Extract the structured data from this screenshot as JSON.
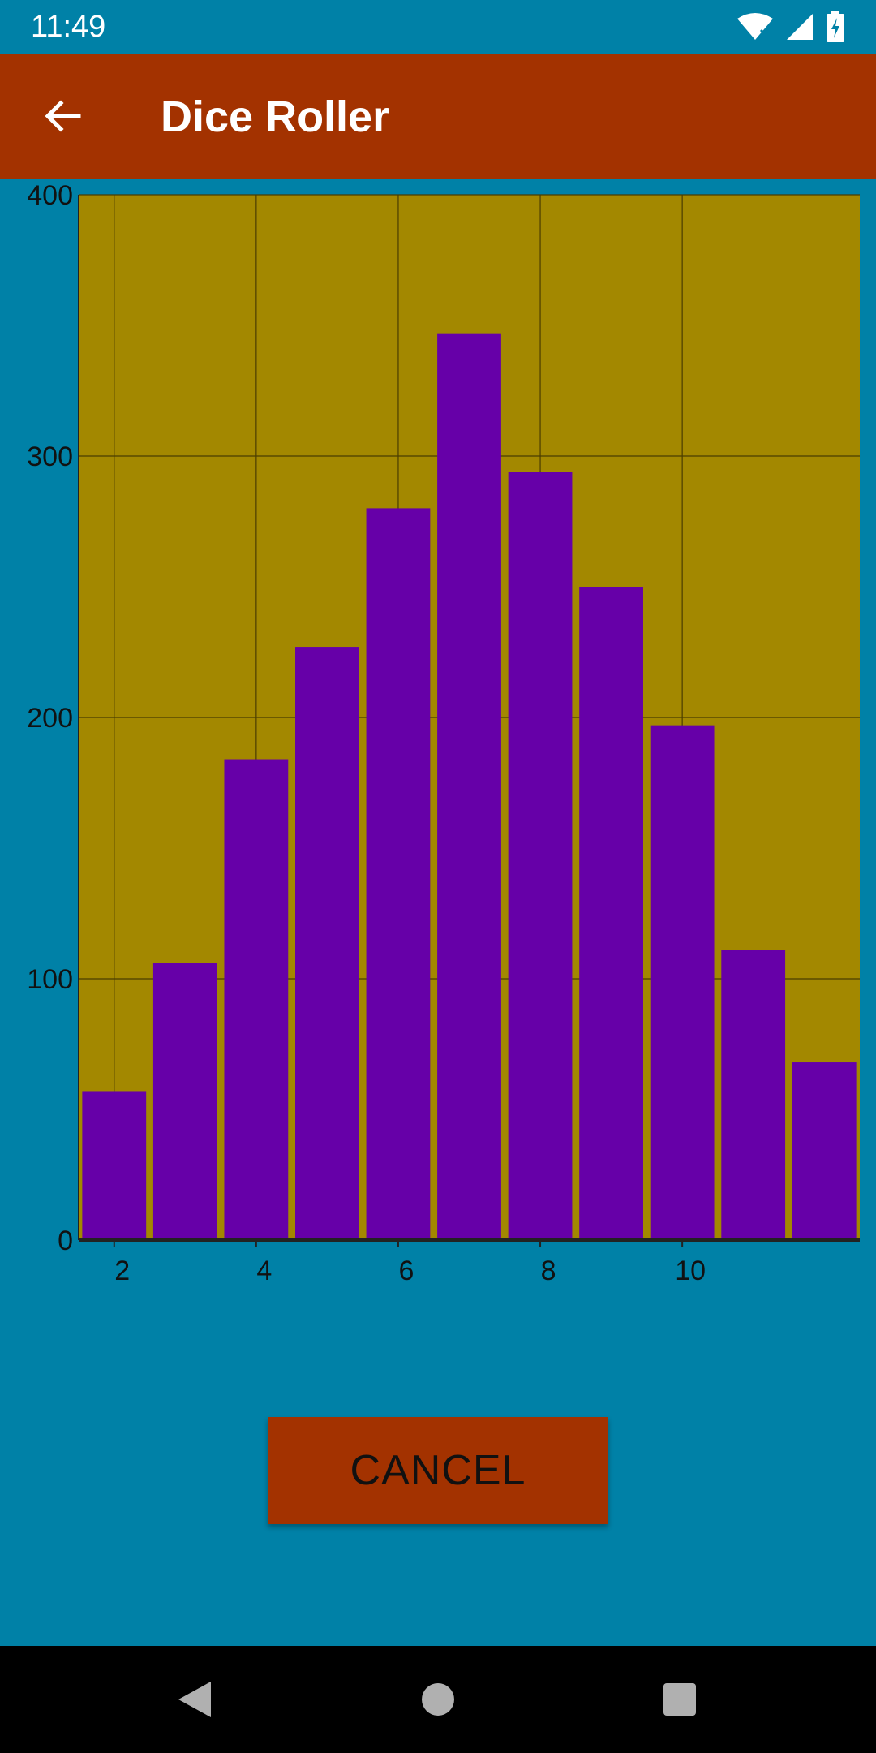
{
  "status_bar": {
    "time": "11:49"
  },
  "app_bar": {
    "title": "Dice Roller"
  },
  "chart_data": {
    "type": "bar",
    "x": [
      2,
      3,
      4,
      5,
      6,
      7,
      8,
      9,
      10,
      11,
      12
    ],
    "values": [
      57,
      106,
      184,
      227,
      280,
      347,
      294,
      250,
      197,
      111,
      68
    ],
    "ylim": [
      0,
      400
    ],
    "xlim": [
      1.5,
      12.5
    ],
    "yticks": [
      0,
      100,
      200,
      300,
      400
    ],
    "xticks": [
      2,
      4,
      6,
      8,
      10
    ],
    "grid": true,
    "colors": {
      "background": "#A38800",
      "bar": "#6600A8",
      "grid": "#4a3d00",
      "axis": "#222222"
    }
  },
  "actions": {
    "cancel_label": "CANCEL"
  }
}
